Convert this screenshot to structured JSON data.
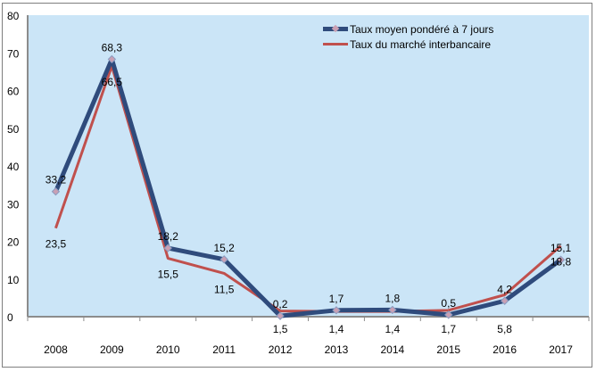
{
  "chart_data": {
    "type": "line",
    "categories": [
      "2008",
      "2009",
      "2010",
      "2011",
      "2012",
      "2013",
      "2014",
      "2015",
      "2016",
      "2017"
    ],
    "ylim": [
      0,
      80
    ],
    "yticks": [
      0,
      10,
      20,
      30,
      40,
      50,
      60,
      70,
      80
    ],
    "grid": false,
    "legend_position": "top-right",
    "series": [
      {
        "name": "Taux moyen pondéré à 7 jours",
        "color": "#2f4b7c",
        "marker": "diamond",
        "values": [
          33.2,
          68.3,
          18.2,
          15.2,
          0.2,
          1.7,
          1.8,
          0.5,
          4.2,
          15.1
        ],
        "labels": [
          "33,2",
          "68,3",
          "18,2",
          "15,2",
          "0,2",
          "1,7",
          "1,8",
          "0,5",
          "4,2",
          "15,1"
        ]
      },
      {
        "name": "Taux du marché interbancaire",
        "color": "#c0504d",
        "marker": "none",
        "values": [
          23.5,
          66.5,
          15.5,
          11.5,
          1.5,
          1.4,
          1.4,
          1.7,
          5.8,
          18.8
        ],
        "labels": [
          "23,5",
          "66,5",
          "15,5",
          "11,5",
          "1,5",
          "1,4",
          "1,4",
          "1,7",
          "5,8",
          "18,8"
        ]
      }
    ],
    "plot_background": "#cbe5f7"
  }
}
